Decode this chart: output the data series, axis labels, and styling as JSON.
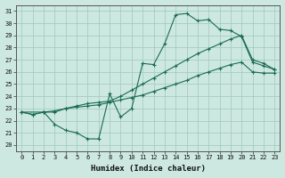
{
  "xlabel": "Humidex (Indice chaleur)",
  "xlim": [
    -0.5,
    23.5
  ],
  "ylim": [
    19.5,
    31.5
  ],
  "xticks": [
    0,
    1,
    2,
    3,
    4,
    5,
    6,
    7,
    8,
    9,
    10,
    11,
    12,
    13,
    14,
    15,
    16,
    17,
    18,
    19,
    20,
    21,
    22,
    23
  ],
  "yticks": [
    20,
    21,
    22,
    23,
    24,
    25,
    26,
    27,
    28,
    29,
    30,
    31
  ],
  "bg_color": "#cde8e0",
  "grid_color": "#9ec8ba",
  "line_color": "#1a6b55",
  "line1_x": [
    0,
    1,
    2,
    3,
    4,
    5,
    6,
    7,
    8,
    9,
    10,
    11,
    12,
    13,
    14,
    15,
    16,
    17,
    18,
    19,
    20,
    21,
    22,
    23
  ],
  "line1_y": [
    22.7,
    22.5,
    22.7,
    21.7,
    21.2,
    21.0,
    20.5,
    20.5,
    24.2,
    22.3,
    23.0,
    26.7,
    26.6,
    28.3,
    30.7,
    30.8,
    30.2,
    30.3,
    29.5,
    29.4,
    28.9,
    26.8,
    26.5,
    26.2
  ],
  "line2_x": [
    0,
    2,
    3,
    4,
    5,
    6,
    7,
    8,
    9,
    10,
    11,
    12,
    13,
    14,
    15,
    16,
    17,
    18,
    19,
    20,
    21,
    22,
    23
  ],
  "line2_y": [
    22.7,
    22.7,
    22.7,
    23.0,
    23.2,
    23.4,
    23.5,
    23.6,
    24.0,
    24.5,
    25.0,
    25.5,
    26.0,
    26.5,
    27.0,
    27.5,
    27.9,
    28.3,
    28.7,
    29.0,
    27.0,
    26.7,
    26.2
  ],
  "line3_x": [
    0,
    1,
    2,
    3,
    4,
    5,
    6,
    7,
    8,
    9,
    10,
    11,
    12,
    13,
    14,
    15,
    16,
    17,
    18,
    19,
    20,
    21,
    22,
    23
  ],
  "line3_y": [
    22.7,
    22.5,
    22.7,
    22.8,
    23.0,
    23.1,
    23.2,
    23.3,
    23.5,
    23.7,
    23.9,
    24.1,
    24.4,
    24.7,
    25.0,
    25.3,
    25.7,
    26.0,
    26.3,
    26.6,
    26.8,
    26.0,
    25.9,
    25.9
  ]
}
